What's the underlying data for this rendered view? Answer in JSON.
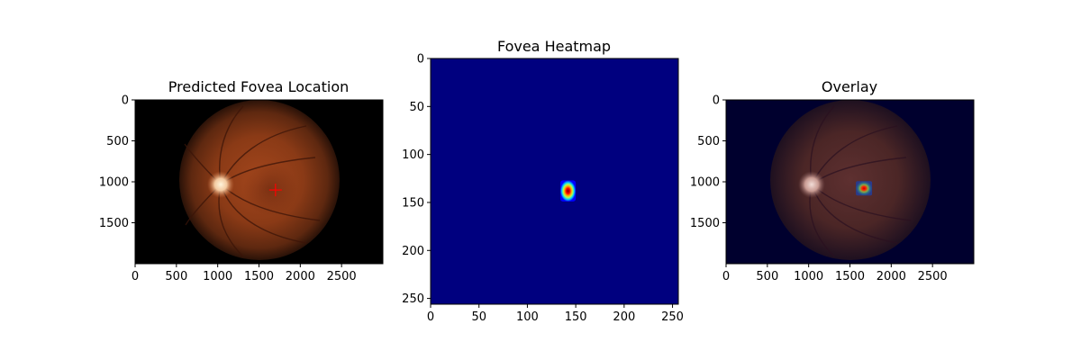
{
  "chart_data": [
    {
      "type": "image",
      "title": "Predicted Fovea Location",
      "xlim": [
        0,
        3000
      ],
      "ylim": [
        2000,
        0
      ],
      "xticks": [
        0,
        500,
        1000,
        1500,
        2000,
        2500
      ],
      "yticks": [
        0,
        500,
        1000,
        1500
      ],
      "optic_disc": {
        "x": 1040,
        "y": 1020
      },
      "predicted_fovea": {
        "x": 1700,
        "y": 1100,
        "marker": "+",
        "color": "#ff0000"
      }
    },
    {
      "type": "heatmap",
      "title": "Fovea Heatmap",
      "colormap": "jet",
      "xlim": [
        0,
        256
      ],
      "ylim": [
        256,
        0
      ],
      "xticks": [
        0,
        50,
        100,
        150,
        200,
        250
      ],
      "yticks": [
        0,
        50,
        100,
        150,
        200,
        250
      ],
      "peak": {
        "x": 142,
        "y": 138
      },
      "hot_region": {
        "x_min": 134,
        "x_max": 150,
        "y_min": 127,
        "y_max": 149
      }
    },
    {
      "type": "image",
      "title": "Overlay",
      "xlim": [
        0,
        3000
      ],
      "ylim": [
        2000,
        0
      ],
      "xticks": [
        0,
        500,
        1000,
        1500,
        2000,
        2500
      ],
      "yticks": [
        0,
        500,
        1000,
        1500
      ],
      "optic_disc": {
        "x": 1040,
        "y": 1020
      },
      "heatmap_peak": {
        "x": 1670,
        "y": 1080
      }
    }
  ]
}
